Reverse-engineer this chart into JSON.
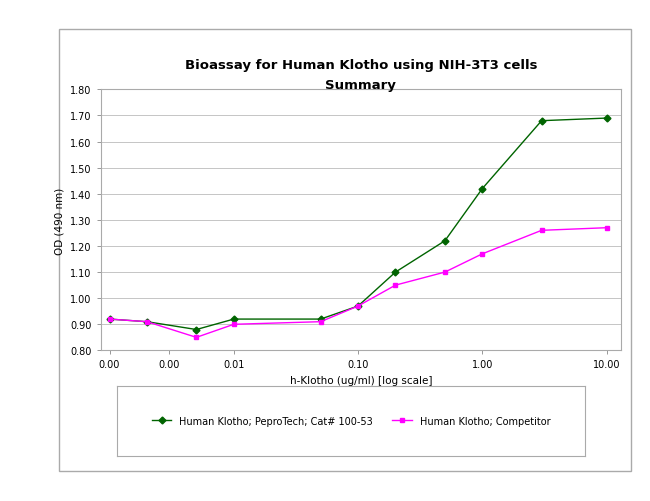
{
  "title_line1": "Bioassay for Human Klotho using NIH-3T3 cells",
  "title_line2": "Summary",
  "xlabel": "h-Klotho (ug/ml) [log scale]",
  "ylabel": "OD (490 nm)",
  "ylim": [
    0.8,
    1.8
  ],
  "yticks": [
    0.8,
    0.9,
    1.0,
    1.1,
    1.2,
    1.3,
    1.4,
    1.5,
    1.6,
    1.7,
    1.8
  ],
  "x_peprotech": [
    0.001,
    0.002,
    0.005,
    0.01,
    0.05,
    0.1,
    0.2,
    0.5,
    1.0,
    3.0,
    10.0
  ],
  "y_peprotech": [
    0.92,
    0.91,
    0.88,
    0.92,
    0.92,
    0.97,
    1.1,
    1.22,
    1.42,
    1.68,
    1.69
  ],
  "x_competitor": [
    0.001,
    0.002,
    0.005,
    0.01,
    0.05,
    0.1,
    0.2,
    0.5,
    1.0,
    3.0,
    10.0
  ],
  "y_competitor": [
    0.92,
    0.91,
    0.85,
    0.9,
    0.91,
    0.97,
    1.05,
    1.1,
    1.17,
    1.26,
    1.27
  ],
  "color_peprotech": "#006400",
  "color_competitor": "#FF00FF",
  "legend_label_peprotech": "Human Klotho; PeproTech; Cat# 100-53",
  "legend_label_competitor": "Human Klotho; Competitor",
  "outer_bg": "#FFFFFF",
  "panel_bg": "#FFFFFF",
  "panel_border": "#AAAAAA",
  "grid_color": "#BBBBBB",
  "title_fontsize": 9.5,
  "axis_label_fontsize": 7.5,
  "tick_fontsize": 7.0,
  "legend_fontsize": 7.0,
  "xtick_positions": [
    0.001,
    0.003,
    0.01,
    0.1,
    1.0,
    10.0
  ],
  "xtick_labels": [
    "0.00",
    "0.00",
    "0.01",
    "0.10",
    "1.00",
    "10.00"
  ]
}
